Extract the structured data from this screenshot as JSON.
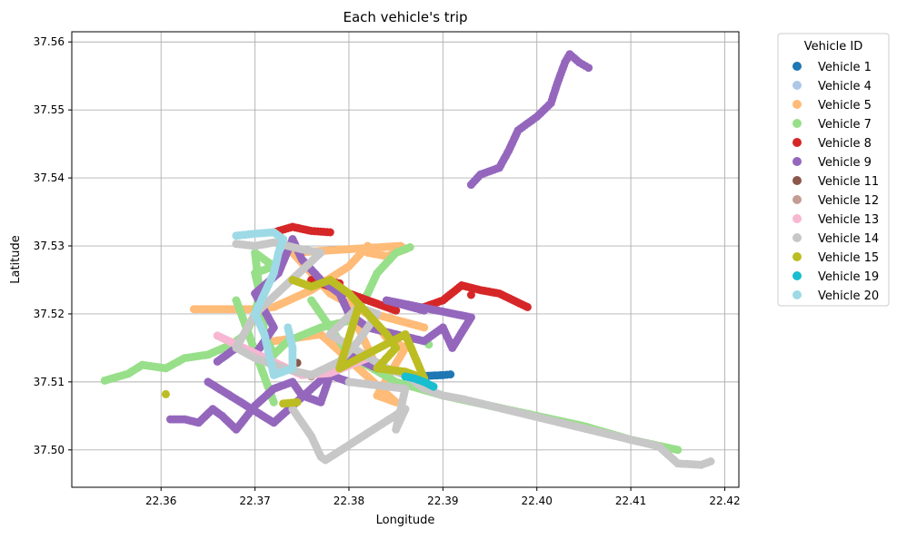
{
  "chart_data": {
    "type": "scatter",
    "title": "Each vehicle's trip",
    "xlabel": "Longitude",
    "ylabel": "Latitude",
    "xlim": [
      22.3505,
      22.4215
    ],
    "ylim": [
      37.4945,
      37.5615
    ],
    "xticks": [
      22.36,
      22.37,
      22.38,
      22.39,
      22.4,
      22.41,
      22.42
    ],
    "xtick_labels": [
      "22.36",
      "22.37",
      "22.38",
      "22.39",
      "22.40",
      "22.41",
      "22.42"
    ],
    "yticks": [
      37.5,
      37.51,
      37.52,
      37.53,
      37.54,
      37.55,
      37.56
    ],
    "ytick_labels": [
      "37.50",
      "37.51",
      "37.52",
      "37.53",
      "37.54",
      "37.55",
      "37.56"
    ],
    "grid": true,
    "legend_title": "Vehicle ID",
    "legend_position": "outside-upper-right",
    "series": [
      {
        "name": "Vehicle 1",
        "color": "#1f77b4",
        "points": [
          [
            22.3865,
            37.5108
          ],
          [
            22.3885,
            37.5109
          ],
          [
            22.39,
            37.511
          ],
          [
            22.3908,
            37.5111
          ]
        ]
      },
      {
        "name": "Vehicle 4",
        "color": "#aec7e8",
        "points": [
          [
            22.387,
            37.5102
          ],
          [
            22.388,
            37.51
          ]
        ]
      },
      {
        "name": "Vehicle 5",
        "color": "#ffbb78",
        "points": [
          [
            22.3635,
            37.5207
          ],
          [
            22.3655,
            37.5207
          ],
          [
            22.368,
            37.5207
          ],
          [
            22.37,
            37.5207
          ],
          [
            22.372,
            37.521
          ],
          [
            22.376,
            37.5235
          ],
          [
            22.38,
            37.527
          ],
          [
            22.382,
            37.53
          ],
          [
            22.382,
            37.529
          ],
          [
            22.384,
            37.5285
          ],
          [
            22.386,
            37.5295
          ],
          [
            22.3855,
            37.53
          ],
          [
            22.374,
            37.529
          ],
          [
            22.378,
            37.523
          ],
          [
            22.382,
            37.52
          ],
          [
            22.384,
            37.5165
          ],
          [
            22.386,
            37.515
          ],
          [
            22.383,
            37.508
          ],
          [
            22.385,
            37.507
          ],
          [
            22.377,
            37.517
          ],
          [
            22.372,
            37.516
          ],
          [
            22.388,
            37.518
          ],
          [
            22.38,
            37.521
          ],
          [
            22.383,
            37.512
          ]
        ]
      },
      {
        "name": "Vehicle 7",
        "color": "#98df8a",
        "points": [
          [
            22.354,
            37.5102
          ],
          [
            22.3555,
            37.5108
          ],
          [
            22.3565,
            37.5112
          ],
          [
            22.358,
            37.5125
          ],
          [
            22.3605,
            37.512
          ],
          [
            22.3625,
            37.5135
          ],
          [
            22.365,
            37.514
          ],
          [
            22.3675,
            37.5155
          ],
          [
            22.369,
            37.517
          ],
          [
            22.37,
            37.52
          ],
          [
            22.3705,
            37.523
          ],
          [
            22.37,
            37.526
          ],
          [
            22.372,
            37.527
          ],
          [
            22.37,
            37.529
          ],
          [
            22.371,
            37.517
          ],
          [
            22.372,
            37.514
          ],
          [
            22.3735,
            37.516
          ],
          [
            22.377,
            37.518
          ],
          [
            22.38,
            37.519
          ],
          [
            22.382,
            37.523
          ],
          [
            22.383,
            37.526
          ],
          [
            22.385,
            37.529
          ],
          [
            22.3865,
            37.5298
          ],
          [
            22.376,
            37.522
          ],
          [
            22.38,
            37.514
          ],
          [
            22.385,
            37.51
          ],
          [
            22.39,
            37.508
          ],
          [
            22.395,
            37.5065
          ],
          [
            22.4,
            37.505
          ],
          [
            22.405,
            37.5035
          ],
          [
            22.41,
            37.5015
          ],
          [
            22.415,
            37.5
          ],
          [
            22.3885,
            37.5155
          ],
          [
            22.372,
            37.507
          ],
          [
            22.368,
            37.522
          ]
        ]
      },
      {
        "name": "Vehicle 8",
        "color": "#d62728",
        "points": [
          [
            22.372,
            37.532
          ],
          [
            22.374,
            37.5328
          ],
          [
            22.376,
            37.5322
          ],
          [
            22.378,
            37.532
          ],
          [
            22.388,
            37.521
          ],
          [
            22.39,
            37.522
          ],
          [
            22.392,
            37.5242
          ],
          [
            22.394,
            37.5235
          ],
          [
            22.396,
            37.523
          ],
          [
            22.399,
            37.521
          ],
          [
            22.385,
            37.5205
          ],
          [
            22.376,
            37.525
          ],
          [
            22.379,
            37.5245
          ],
          [
            22.393,
            37.5228
          ]
        ]
      },
      {
        "name": "Vehicle 9",
        "color": "#9467bd",
        "points": [
          [
            22.361,
            37.5045
          ],
          [
            22.3625,
            37.5045
          ],
          [
            22.364,
            37.504
          ],
          [
            22.3655,
            37.506
          ],
          [
            22.3665,
            37.505
          ],
          [
            22.368,
            37.503
          ],
          [
            22.37,
            37.5065
          ],
          [
            22.372,
            37.509
          ],
          [
            22.374,
            37.51
          ],
          [
            22.375,
            37.508
          ],
          [
            22.377,
            37.507
          ],
          [
            22.378,
            37.511
          ],
          [
            22.38,
            37.51
          ],
          [
            22.366,
            37.513
          ],
          [
            22.368,
            37.515
          ],
          [
            22.37,
            37.514
          ],
          [
            22.372,
            37.518
          ],
          [
            22.37,
            37.523
          ],
          [
            22.3725,
            37.526
          ],
          [
            22.374,
            37.531
          ],
          [
            22.375,
            37.528
          ],
          [
            22.377,
            37.525
          ],
          [
            22.379,
            37.523
          ],
          [
            22.38,
            37.52
          ],
          [
            22.382,
            37.518
          ],
          [
            22.385,
            37.517
          ],
          [
            22.388,
            37.516
          ],
          [
            22.39,
            37.518
          ],
          [
            22.391,
            37.515
          ],
          [
            22.393,
            37.5195
          ],
          [
            22.384,
            37.522
          ],
          [
            22.388,
            37.5205
          ],
          [
            22.365,
            37.51
          ],
          [
            22.372,
            37.504
          ],
          [
            22.38,
            37.514
          ],
          [
            22.383,
            37.512
          ],
          [
            22.393,
            37.539
          ],
          [
            22.394,
            37.5405
          ],
          [
            22.396,
            37.5415
          ],
          [
            22.397,
            37.544
          ],
          [
            22.398,
            37.547
          ],
          [
            22.4,
            37.549
          ],
          [
            22.4015,
            37.551
          ],
          [
            22.4022,
            37.554
          ],
          [
            22.403,
            37.557
          ],
          [
            22.4035,
            37.5582
          ],
          [
            22.4045,
            37.557
          ],
          [
            22.4055,
            37.5562
          ]
        ]
      },
      {
        "name": "Vehicle 11",
        "color": "#8c564b",
        "points": [
          [
            22.3745,
            37.5128
          ]
        ]
      },
      {
        "name": "Vehicle 12",
        "color": "#c49c94",
        "points": [
          [
            22.376,
            37.5108
          ]
        ]
      },
      {
        "name": "Vehicle 13",
        "color": "#f7b6d2",
        "points": [
          [
            22.366,
            37.5168
          ],
          [
            22.375,
            37.511
          ],
          [
            22.378,
            37.5113
          ],
          [
            22.382,
            37.5135
          ]
        ]
      },
      {
        "name": "Vehicle 14",
        "color": "#c7c7c7",
        "points": [
          [
            22.368,
            37.5303
          ],
          [
            22.37,
            37.53
          ],
          [
            22.372,
            37.5305
          ],
          [
            22.375,
            37.5295
          ],
          [
            22.377,
            37.529
          ],
          [
            22.37,
            37.52
          ],
          [
            22.368,
            37.515
          ],
          [
            22.37,
            37.5135
          ],
          [
            22.373,
            37.512
          ],
          [
            22.376,
            37.511
          ],
          [
            22.379,
            37.513
          ],
          [
            22.381,
            37.516
          ],
          [
            22.382,
            37.518
          ],
          [
            22.383,
            37.52
          ],
          [
            22.381,
            37.521
          ],
          [
            22.378,
            37.517
          ],
          [
            22.384,
            37.512
          ],
          [
            22.386,
            37.511
          ],
          [
            22.388,
            37.509
          ],
          [
            22.39,
            37.508
          ],
          [
            22.392,
            37.5075
          ],
          [
            22.395,
            37.5065
          ],
          [
            22.398,
            37.5055
          ],
          [
            22.401,
            37.5045
          ],
          [
            22.404,
            37.5035
          ],
          [
            22.407,
            37.5025
          ],
          [
            22.41,
            37.5015
          ],
          [
            22.413,
            37.5005
          ],
          [
            22.415,
            37.498
          ],
          [
            22.4175,
            37.4978
          ],
          [
            22.4185,
            37.4983
          ],
          [
            22.374,
            37.506
          ],
          [
            22.376,
            37.502
          ],
          [
            22.377,
            37.499
          ],
          [
            22.3775,
            37.4985
          ],
          [
            22.386,
            37.506
          ],
          [
            22.385,
            37.503
          ],
          [
            22.386,
            37.509
          ],
          [
            22.38,
            37.51
          ]
        ]
      },
      {
        "name": "Vehicle 15",
        "color": "#bcbd22",
        "points": [
          [
            22.3605,
            37.5082
          ],
          [
            22.373,
            37.5068
          ],
          [
            22.3745,
            37.507
          ],
          [
            22.374,
            37.525
          ],
          [
            22.376,
            37.524
          ],
          [
            22.378,
            37.525
          ],
          [
            22.38,
            37.523
          ],
          [
            22.382,
            37.52
          ],
          [
            22.384,
            37.517
          ],
          [
            22.385,
            37.515
          ],
          [
            22.383,
            37.512
          ],
          [
            22.386,
            37.5115
          ],
          [
            22.388,
            37.5105
          ],
          [
            22.386,
            37.517
          ],
          [
            22.379,
            37.512
          ],
          [
            22.381,
            37.521
          ]
        ]
      },
      {
        "name": "Vehicle 19",
        "color": "#17becf",
        "points": [
          [
            22.386,
            37.5108
          ],
          [
            22.387,
            37.5105
          ],
          [
            22.388,
            37.51
          ],
          [
            22.389,
            37.5093
          ]
        ]
      },
      {
        "name": "Vehicle 20",
        "color": "#9edae5",
        "points": [
          [
            22.368,
            37.5315
          ],
          [
            22.37,
            37.5318
          ],
          [
            22.372,
            37.532
          ],
          [
            22.373,
            37.531
          ],
          [
            22.3725,
            37.529
          ],
          [
            22.372,
            37.526
          ],
          [
            22.371,
            37.523
          ],
          [
            22.37,
            37.52
          ],
          [
            22.371,
            37.517
          ],
          [
            22.3715,
            37.514
          ],
          [
            22.372,
            37.511
          ],
          [
            22.374,
            37.512
          ],
          [
            22.374,
            37.515
          ],
          [
            22.3735,
            37.518
          ]
        ]
      }
    ]
  }
}
